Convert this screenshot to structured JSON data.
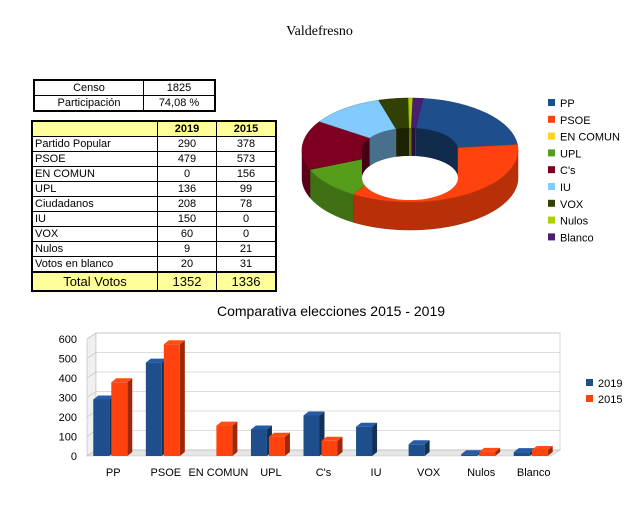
{
  "page_title": "Valdefresno",
  "summary": {
    "censo_label": "Censo",
    "censo_value": "1825",
    "participacion_label": "Participación",
    "participacion_value": "74,08 %"
  },
  "results_table": {
    "header_2019": "2019",
    "header_2015": "2015",
    "rows": [
      {
        "party": "Partido Popular",
        "v2019": "290",
        "v2015": "378"
      },
      {
        "party": "PSOE",
        "v2019": "479",
        "v2015": "573"
      },
      {
        "party": "EN COMUN",
        "v2019": "0",
        "v2015": "156"
      },
      {
        "party": "UPL",
        "v2019": "136",
        "v2015": "99"
      },
      {
        "party": "Ciudadanos",
        "v2019": "208",
        "v2015": "78"
      },
      {
        "party": "IU",
        "v2019": "150",
        "v2015": "0"
      },
      {
        "party": "VOX",
        "v2019": "60",
        "v2015": "0"
      },
      {
        "party": "Nulos",
        "v2019": "9",
        "v2015": "21"
      },
      {
        "party": "Votos en blanco",
        "v2019": "20",
        "v2015": "31"
      }
    ],
    "total_label": "Total Votos",
    "total_2019": "1352",
    "total_2015": "1336"
  },
  "chart_data": [
    {
      "type": "pie",
      "style": "3d-donut",
      "categories": [
        "PP",
        "PSOE",
        "EN COMUN",
        "UPL",
        "C's",
        "IU",
        "VOX",
        "Nulos",
        "Blanco"
      ],
      "values": [
        290,
        479,
        0,
        136,
        208,
        150,
        60,
        9,
        20
      ],
      "colors": [
        "#1f4e8c",
        "#ff420e",
        "#ffd320",
        "#579d1c",
        "#7e0021",
        "#83caff",
        "#314004",
        "#aecf00",
        "#4b1f6f"
      ],
      "legend_placement": "right"
    },
    {
      "type": "bar",
      "title": "Comparativa elecciones 2015 - 2019",
      "categories": [
        "PP",
        "PSOE",
        "EN COMUN",
        "UPL",
        "C's",
        "IU",
        "VOX",
        "Nulos",
        "Blanco"
      ],
      "series": [
        {
          "name": "2019",
          "values": [
            290,
            479,
            0,
            136,
            208,
            150,
            60,
            9,
            20
          ],
          "color": "#1f4e8c"
        },
        {
          "name": "2015",
          "values": [
            378,
            573,
            156,
            99,
            78,
            0,
            0,
            21,
            31
          ],
          "color": "#ff420e"
        }
      ],
      "ylim": [
        0,
        600
      ],
      "yticks": [
        "0",
        "100",
        "200",
        "300",
        "400",
        "500",
        "600"
      ],
      "grid": true,
      "legend_placement": "right"
    }
  ]
}
